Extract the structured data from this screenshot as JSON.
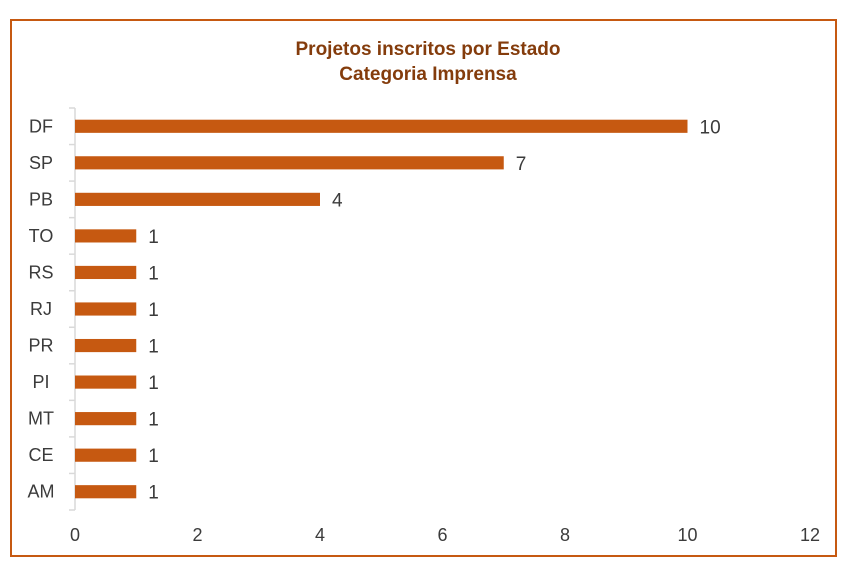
{
  "chart_data": {
    "type": "bar",
    "orientation": "horizontal",
    "title": "Projetos inscritos por Estado",
    "subtitle": "Categoria Imprensa",
    "categories": [
      "DF",
      "SP",
      "PB",
      "TO",
      "RS",
      "RJ",
      "PR",
      "PI",
      "MT",
      "CE",
      "AM"
    ],
    "values": [
      10,
      7,
      4,
      1,
      1,
      1,
      1,
      1,
      1,
      1,
      1
    ],
    "xticks": [
      0,
      2,
      4,
      6,
      8,
      10,
      12
    ],
    "xlim": [
      0,
      12
    ],
    "xlabel": "",
    "ylabel": "",
    "grid": false,
    "legend": "none",
    "data_labels": true,
    "colors": {
      "bar": "#C65911",
      "border": "#C65911",
      "title": "#843C0C",
      "axis_line": "#d9d9d9",
      "text": "#3b3b3b"
    }
  }
}
